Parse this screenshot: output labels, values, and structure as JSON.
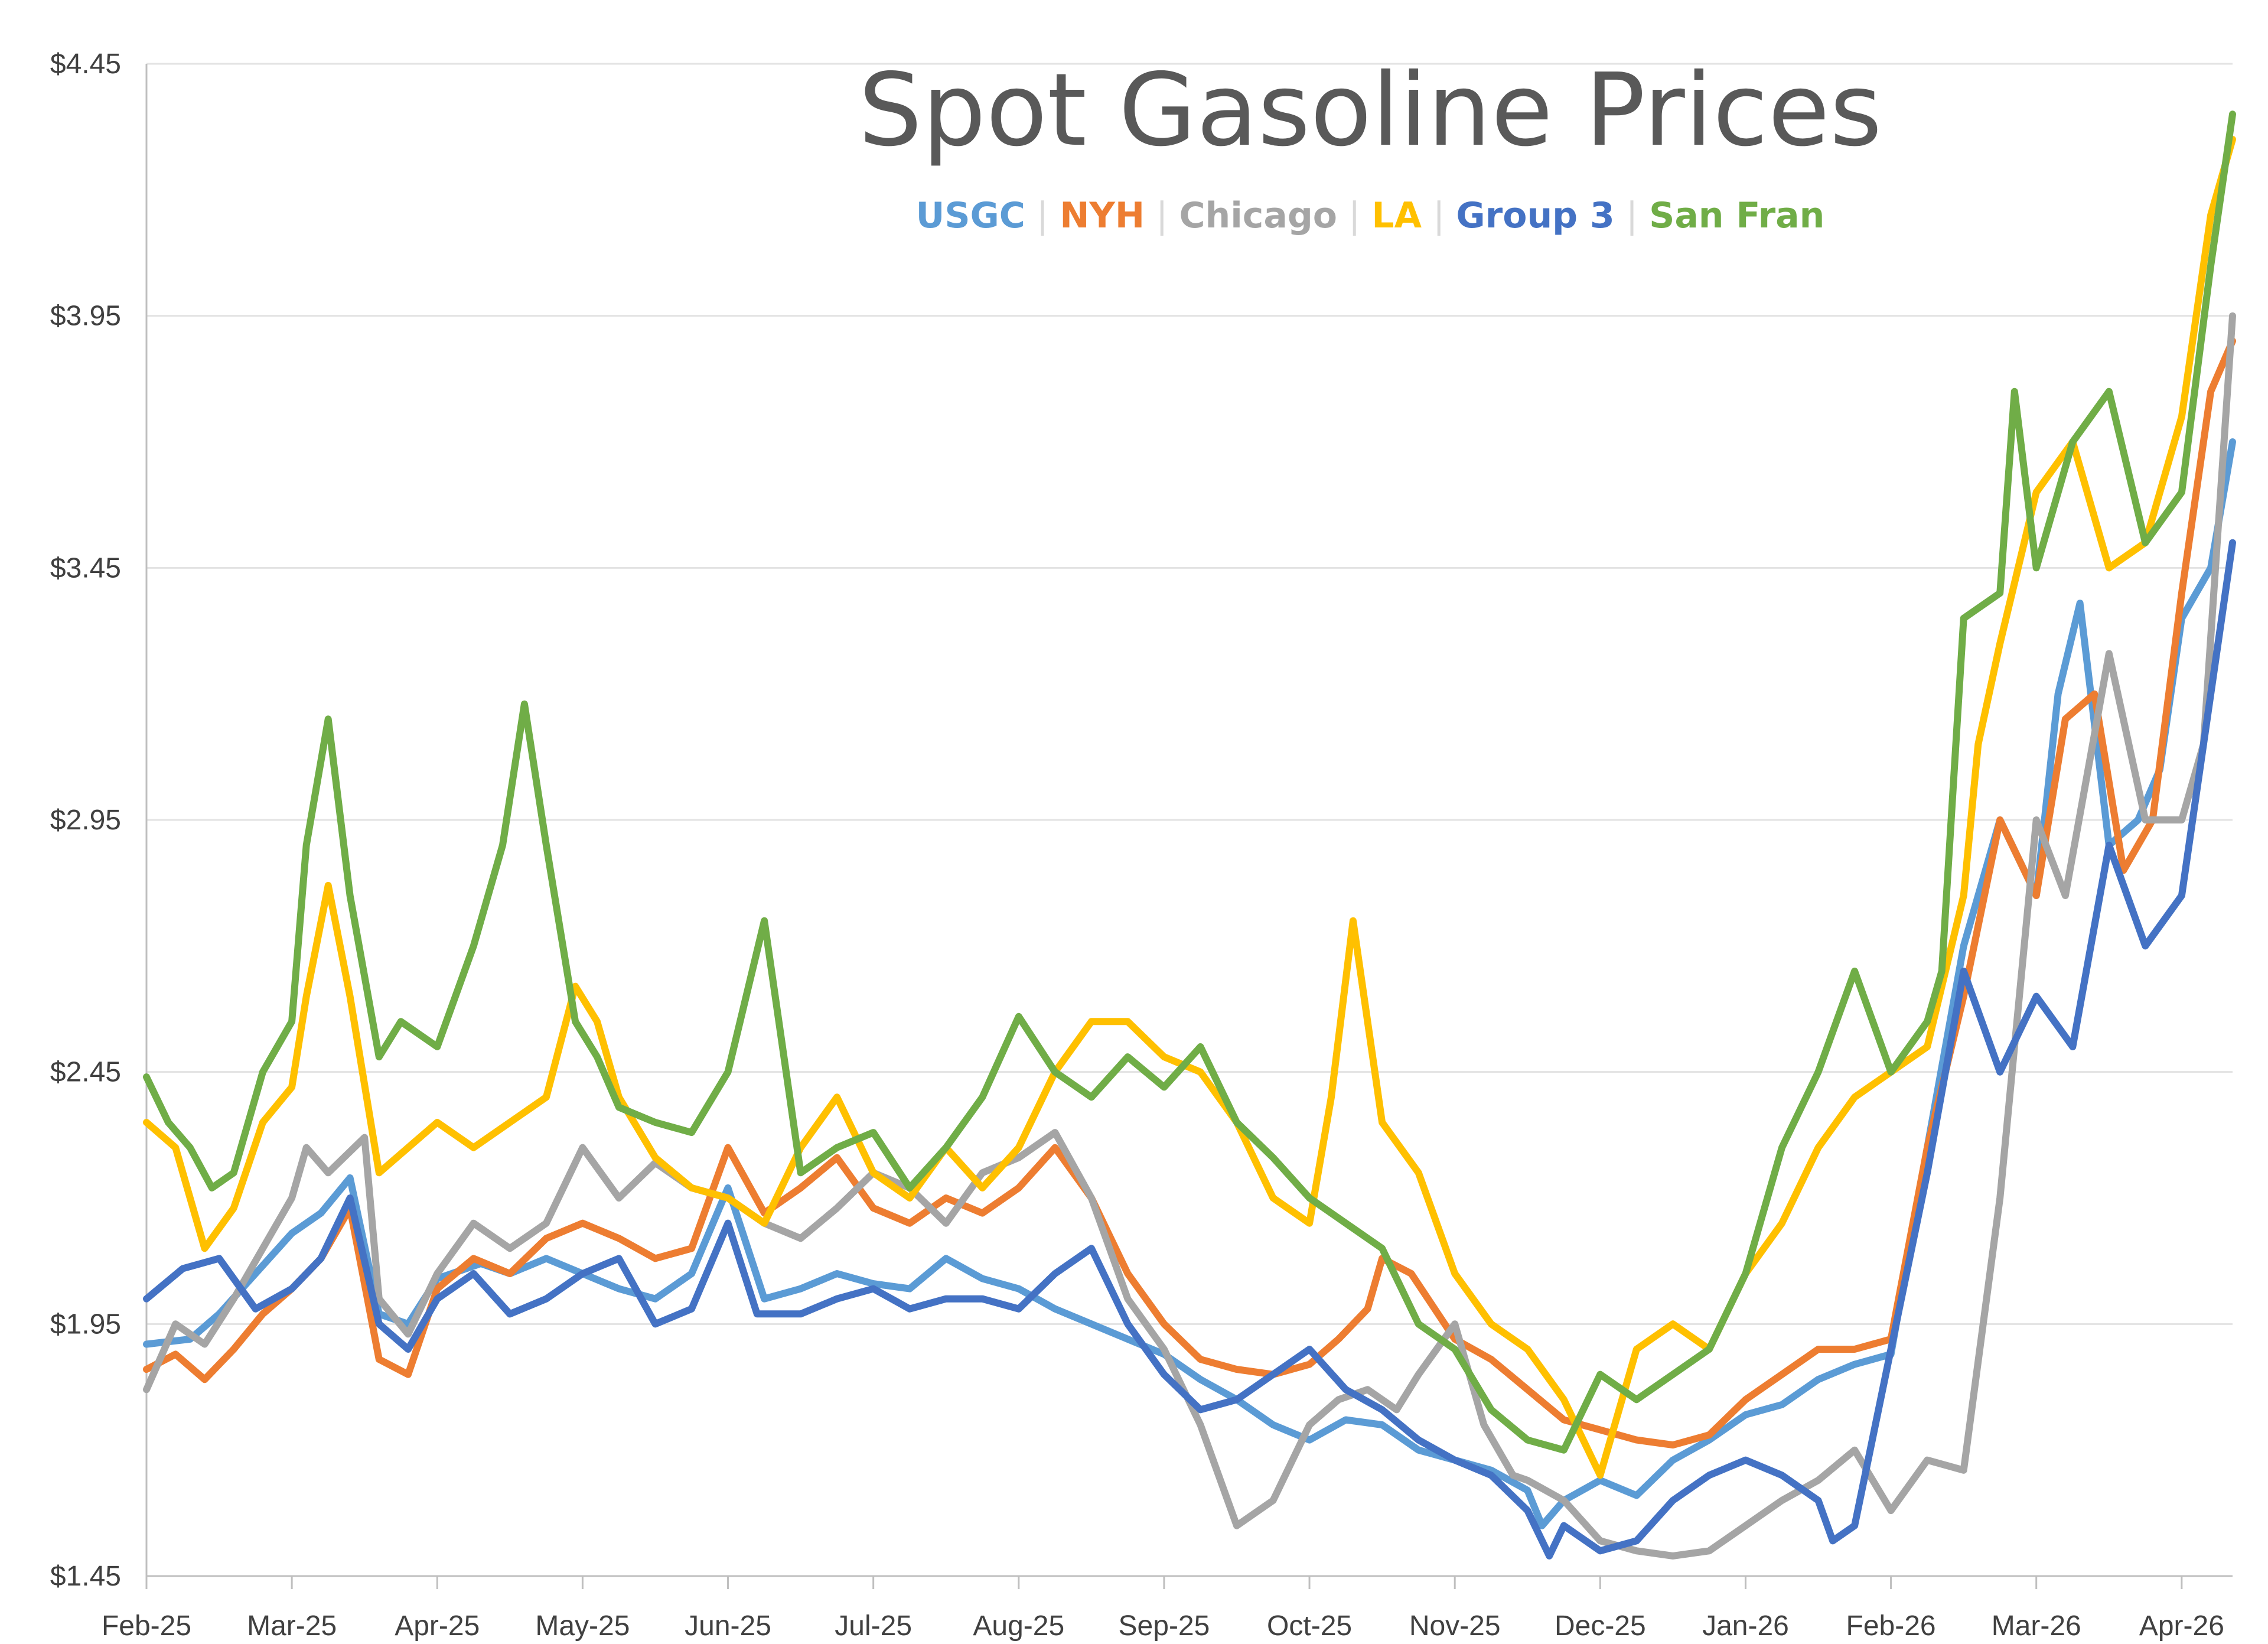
{
  "chart_data": {
    "type": "line",
    "title": "Spot Gasoline Prices",
    "xlabel": "",
    "ylabel": "",
    "ylim": [
      1.45,
      4.45
    ],
    "y_ticks": [
      "$1.45",
      "$1.95",
      "$2.45",
      "$2.95",
      "$3.45",
      "$3.95",
      "$4.45"
    ],
    "y_tick_values": [
      1.45,
      1.95,
      2.45,
      2.95,
      3.45,
      3.95,
      4.45
    ],
    "x_ticks": [
      "Feb-25",
      "Mar-25",
      "Apr-25",
      "May-25",
      "Jun-25",
      "Jul-25",
      "Aug-25",
      "Sep-25",
      "Oct-25",
      "Nov-25",
      "Dec-25",
      "Jan-26",
      "Feb-26",
      "Mar-26",
      "Apr-26"
    ],
    "x_tick_months": [
      0,
      1,
      2,
      3,
      4,
      5,
      6,
      7,
      8,
      9,
      10,
      11,
      12,
      13,
      14
    ],
    "x_range_months": [
      0,
      14.35
    ],
    "grid": true,
    "legend_position": "top-center",
    "series": [
      {
        "name": "USGC",
        "color": "#5B9BD5",
        "x": [
          0,
          0.3,
          0.5,
          0.75,
          1,
          1.2,
          1.4,
          1.6,
          1.8,
          2,
          2.3,
          2.5,
          2.75,
          3,
          3.25,
          3.5,
          3.75,
          4,
          4.25,
          4.5,
          4.75,
          5,
          5.25,
          5.5,
          5.75,
          6,
          6.25,
          6.5,
          6.75,
          7,
          7.25,
          7.5,
          7.75,
          8,
          8.25,
          8.5,
          8.75,
          9,
          9.25,
          9.5,
          9.6,
          9.75,
          10,
          10.25,
          10.5,
          10.75,
          11,
          11.25,
          11.5,
          11.75,
          12,
          12.25,
          12.5,
          12.75,
          13,
          13.15,
          13.3,
          13.5,
          13.7,
          13.85,
          14,
          14.2,
          14.35
        ],
        "values": [
          1.91,
          1.92,
          1.97,
          2.05,
          2.13,
          2.17,
          2.24,
          1.97,
          1.95,
          2.04,
          2.07,
          2.05,
          2.08,
          2.05,
          2.02,
          2.0,
          2.05,
          2.22,
          2.0,
          2.02,
          2.05,
          2.03,
          2.02,
          2.08,
          2.04,
          2.02,
          1.98,
          1.95,
          1.92,
          1.89,
          1.84,
          1.8,
          1.75,
          1.72,
          1.76,
          1.75,
          1.7,
          1.68,
          1.66,
          1.62,
          1.55,
          1.6,
          1.64,
          1.61,
          1.68,
          1.72,
          1.77,
          1.79,
          1.84,
          1.87,
          1.89,
          2.3,
          2.7,
          2.95,
          2.8,
          3.2,
          3.38,
          2.9,
          2.95,
          3.05,
          3.35,
          3.45,
          3.7
        ]
      },
      {
        "name": "NYH",
        "color": "#ED7D31",
        "x": [
          0,
          0.2,
          0.4,
          0.6,
          0.8,
          1,
          1.2,
          1.4,
          1.6,
          1.8,
          2,
          2.25,
          2.5,
          2.75,
          3,
          3.25,
          3.5,
          3.75,
          4,
          4.25,
          4.5,
          4.75,
          5,
          5.25,
          5.5,
          5.75,
          6,
          6.25,
          6.5,
          6.75,
          7,
          7.25,
          7.5,
          7.75,
          8,
          8.2,
          8.4,
          8.5,
          8.7,
          9,
          9.25,
          9.5,
          9.75,
          10,
          10.25,
          10.5,
          10.75,
          11,
          11.25,
          11.5,
          11.75,
          12,
          12.25,
          12.5,
          12.75,
          13,
          13.2,
          13.4,
          13.6,
          13.8,
          14,
          14.2,
          14.35
        ],
        "values": [
          1.86,
          1.89,
          1.84,
          1.9,
          1.97,
          2.02,
          2.08,
          2.18,
          1.88,
          1.85,
          2.02,
          2.08,
          2.05,
          2.12,
          2.15,
          2.12,
          2.08,
          2.1,
          2.3,
          2.17,
          2.22,
          2.28,
          2.18,
          2.15,
          2.2,
          2.17,
          2.22,
          2.3,
          2.2,
          2.05,
          1.95,
          1.88,
          1.86,
          1.85,
          1.87,
          1.92,
          1.98,
          2.08,
          2.05,
          1.92,
          1.88,
          1.82,
          1.76,
          1.74,
          1.72,
          1.71,
          1.73,
          1.8,
          1.85,
          1.9,
          1.9,
          1.92,
          2.3,
          2.6,
          2.95,
          2.8,
          3.15,
          3.2,
          2.85,
          2.95,
          3.4,
          3.8,
          3.9
        ]
      },
      {
        "name": "Chicago",
        "color": "#A5A5A5",
        "x": [
          0,
          0.2,
          0.4,
          0.6,
          0.8,
          1,
          1.1,
          1.25,
          1.5,
          1.6,
          1.8,
          2,
          2.25,
          2.5,
          2.75,
          3,
          3.25,
          3.5,
          3.75,
          4,
          4.25,
          4.5,
          4.75,
          5,
          5.25,
          5.5,
          5.75,
          6,
          6.25,
          6.5,
          6.75,
          7,
          7.25,
          7.5,
          7.75,
          8,
          8.2,
          8.4,
          8.6,
          8.75,
          9,
          9.2,
          9.4,
          9.5,
          9.75,
          10,
          10.25,
          10.5,
          10.75,
          11,
          11.25,
          11.5,
          11.75,
          12,
          12.25,
          12.5,
          12.75,
          13,
          13.2,
          13.5,
          13.75,
          14,
          14.15,
          14.35
        ],
        "values": [
          1.82,
          1.95,
          1.91,
          2.0,
          2.1,
          2.2,
          2.3,
          2.25,
          2.32,
          2.0,
          1.93,
          2.05,
          2.15,
          2.1,
          2.15,
          2.3,
          2.2,
          2.27,
          2.22,
          2.2,
          2.15,
          2.12,
          2.18,
          2.25,
          2.22,
          2.15,
          2.25,
          2.28,
          2.33,
          2.2,
          2.0,
          1.9,
          1.75,
          1.55,
          1.6,
          1.75,
          1.8,
          1.82,
          1.78,
          1.85,
          1.95,
          1.75,
          1.65,
          1.64,
          1.6,
          1.52,
          1.5,
          1.49,
          1.5,
          1.55,
          1.6,
          1.64,
          1.7,
          1.58,
          1.68,
          1.66,
          2.2,
          2.95,
          2.8,
          3.28,
          2.95,
          2.95,
          3.1,
          3.95
        ]
      },
      {
        "name": "LA",
        "color": "#FFC000",
        "x": [
          0,
          0.2,
          0.4,
          0.6,
          0.8,
          1,
          1.1,
          1.25,
          1.4,
          1.6,
          1.8,
          2,
          2.25,
          2.5,
          2.75,
          2.95,
          3.1,
          3.25,
          3.5,
          3.75,
          4,
          4.25,
          4.5,
          4.75,
          5,
          5.25,
          5.5,
          5.75,
          6,
          6.25,
          6.5,
          6.75,
          7,
          7.25,
          7.5,
          7.75,
          8,
          8.15,
          8.3,
          8.5,
          8.75,
          9,
          9.25,
          9.5,
          9.75,
          10,
          10.25,
          10.5,
          10.75,
          11,
          11.25,
          11.5,
          11.75,
          12,
          12.25,
          12.5,
          12.6,
          12.75,
          13,
          13.25,
          13.5,
          13.75,
          14,
          14.2,
          14.35
        ],
        "values": [
          2.35,
          2.3,
          2.1,
          2.18,
          2.35,
          2.42,
          2.6,
          2.82,
          2.6,
          2.25,
          2.3,
          2.35,
          2.3,
          2.35,
          2.4,
          2.62,
          2.55,
          2.4,
          2.28,
          2.22,
          2.2,
          2.15,
          2.3,
          2.4,
          2.25,
          2.2,
          2.3,
          2.22,
          2.3,
          2.45,
          2.55,
          2.55,
          2.48,
          2.45,
          2.35,
          2.2,
          2.15,
          2.4,
          2.75,
          2.35,
          2.25,
          2.05,
          1.95,
          1.9,
          1.8,
          1.65,
          1.9,
          1.95,
          1.9,
          2.05,
          2.15,
          2.3,
          2.4,
          2.45,
          2.5,
          2.8,
          3.1,
          3.3,
          3.6,
          3.7,
          3.45,
          3.5,
          3.75,
          4.15,
          4.3
        ]
      },
      {
        "name": "Group 3",
        "color": "#4472C4",
        "x": [
          0,
          0.25,
          0.5,
          0.75,
          1,
          1.2,
          1.4,
          1.6,
          1.8,
          2,
          2.25,
          2.5,
          2.75,
          3,
          3.25,
          3.5,
          3.75,
          4,
          4.2,
          4.5,
          4.75,
          5,
          5.25,
          5.5,
          5.75,
          6,
          6.25,
          6.5,
          6.75,
          7,
          7.25,
          7.5,
          7.75,
          8,
          8.25,
          8.5,
          8.75,
          9,
          9.25,
          9.5,
          9.65,
          9.75,
          10,
          10.25,
          10.5,
          10.75,
          11,
          11.25,
          11.5,
          11.6,
          11.75,
          12,
          12.25,
          12.5,
          12.75,
          13,
          13.25,
          13.5,
          13.75,
          14,
          14.2,
          14.35
        ],
        "values": [
          2.0,
          2.06,
          2.08,
          1.98,
          2.02,
          2.08,
          2.2,
          1.95,
          1.9,
          2.0,
          2.05,
          1.97,
          2.0,
          2.05,
          2.08,
          1.95,
          1.98,
          2.15,
          1.97,
          1.97,
          2.0,
          2.02,
          1.98,
          2.0,
          2.0,
          1.98,
          2.05,
          2.1,
          1.95,
          1.85,
          1.78,
          1.8,
          1.85,
          1.9,
          1.82,
          1.78,
          1.72,
          1.68,
          1.65,
          1.58,
          1.49,
          1.55,
          1.5,
          1.52,
          1.6,
          1.65,
          1.68,
          1.65,
          1.6,
          1.52,
          1.55,
          1.9,
          2.25,
          2.65,
          2.45,
          2.6,
          2.5,
          2.9,
          2.7,
          2.8,
          3.2,
          3.5
        ]
      },
      {
        "name": "San Fran",
        "color": "#70AD47",
        "x": [
          0,
          0.15,
          0.3,
          0.45,
          0.6,
          0.8,
          1,
          1.1,
          1.25,
          1.4,
          1.6,
          1.75,
          2,
          2.25,
          2.45,
          2.6,
          2.75,
          2.95,
          3.1,
          3.25,
          3.5,
          3.75,
          4,
          4.25,
          4.5,
          4.75,
          5,
          5.25,
          5.5,
          5.75,
          6,
          6.25,
          6.5,
          6.75,
          7,
          7.25,
          7.5,
          7.75,
          8,
          8.25,
          8.5,
          8.75,
          9,
          9.25,
          9.5,
          9.75,
          10,
          10.25,
          10.5,
          10.75,
          11,
          11.25,
          11.5,
          11.75,
          12,
          12.25,
          12.35,
          12.5,
          12.75,
          12.85,
          13,
          13.25,
          13.5,
          13.75,
          14,
          14.2,
          14.35
        ],
        "values": [
          2.44,
          2.35,
          2.3,
          2.22,
          2.25,
          2.45,
          2.55,
          2.9,
          3.15,
          2.8,
          2.48,
          2.55,
          2.5,
          2.7,
          2.9,
          3.18,
          2.9,
          2.55,
          2.48,
          2.38,
          2.35,
          2.33,
          2.45,
          2.75,
          2.25,
          2.3,
          2.33,
          2.22,
          2.3,
          2.4,
          2.56,
          2.45,
          2.4,
          2.48,
          2.42,
          2.5,
          2.35,
          2.28,
          2.2,
          2.15,
          2.1,
          1.95,
          1.9,
          1.78,
          1.72,
          1.7,
          1.85,
          1.8,
          1.85,
          1.9,
          2.05,
          2.3,
          2.45,
          2.65,
          2.45,
          2.55,
          2.65,
          3.35,
          3.4,
          3.8,
          3.45,
          3.7,
          3.8,
          3.5,
          3.6,
          4.05,
          4.35
        ]
      }
    ]
  }
}
